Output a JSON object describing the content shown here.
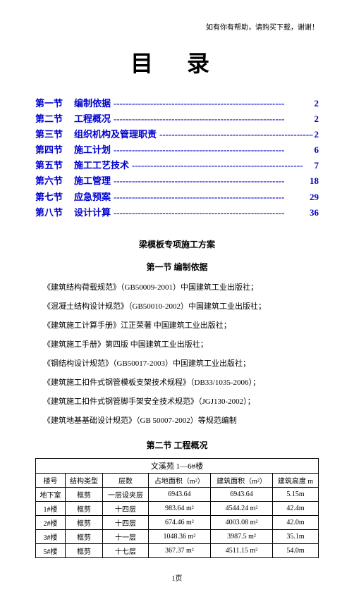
{
  "headerNote": "如有你有帮助，请购买下载，谢谢！",
  "title": "目 录",
  "toc": [
    {
      "section": "第一节",
      "name": "编制依据",
      "page": "2"
    },
    {
      "section": "第二节",
      "name": "工程概况",
      "page": "2"
    },
    {
      "section": "第三节",
      "name": "组织机构及管理职责",
      "page": "2"
    },
    {
      "section": "第四节",
      "name": "施工计划",
      "page": "6"
    },
    {
      "section": "第五节",
      "name": "施工工艺技术",
      "page": "7"
    },
    {
      "section": "第六节",
      "name": "施工管理",
      "page": "18"
    },
    {
      "section": "第七节",
      "name": "应急预案",
      "page": "29"
    },
    {
      "section": "第八节",
      "name": "设计计算",
      "page": "36"
    }
  ],
  "dashFill": "--------------------------------------------------------",
  "subtitle": "梁模板专项施工方案",
  "sec1": {
    "heading": "第一节  编制依据",
    "lines": [
      "《建筑结构荷载规范》（GB50009-2001）中国建筑工业出版社；",
      "《混凝土结构设计规范》（GB50010-2002）中国建筑工业出版社；",
      "《建筑施工计算手册》江正荣著  中国建筑工业出版社；",
      "《建筑施工手册》第四版  中国建筑工业出版社；",
      "《钢结构设计规范》（GB50017-2003）中国建筑工业出版社；",
      "《建筑施工扣件式钢管模板支架技术规程》（DB33/1035-2006）；",
      "《建筑施工扣件式钢管脚手架安全技术规范》（JGJ130-2002）；",
      "《建筑地基基础设计规范》（GB 50007-2002）等规范编制"
    ]
  },
  "sec2": {
    "heading": "第二节  工程概况",
    "tableTitle": "文溪苑 1—6#楼",
    "columns": [
      "楼号",
      "结构类型",
      "层数",
      "占地面积（m²）",
      "建筑面积（m²）",
      "建筑高度 m"
    ],
    "rows": [
      [
        "地下室",
        "框剪",
        "一层设夹层",
        "6943.64",
        "6943.64",
        "5.15m"
      ],
      [
        "1#楼",
        "框剪",
        "十四层",
        "983.64 m²",
        "4544.24 m²",
        "42.4m"
      ],
      [
        "2#楼",
        "框剪",
        "十四层",
        "674.46 m²",
        "4003.08 m²",
        "42.0m"
      ],
      [
        "3#楼",
        "框剪",
        "十一层",
        "1048.36 m²",
        "3987.5 m²",
        "35.1m"
      ],
      [
        "5#楼",
        "框剪",
        "十七层",
        "367.37 m²",
        "4511.15 m²",
        "54.0m"
      ]
    ]
  },
  "footer": "1页"
}
